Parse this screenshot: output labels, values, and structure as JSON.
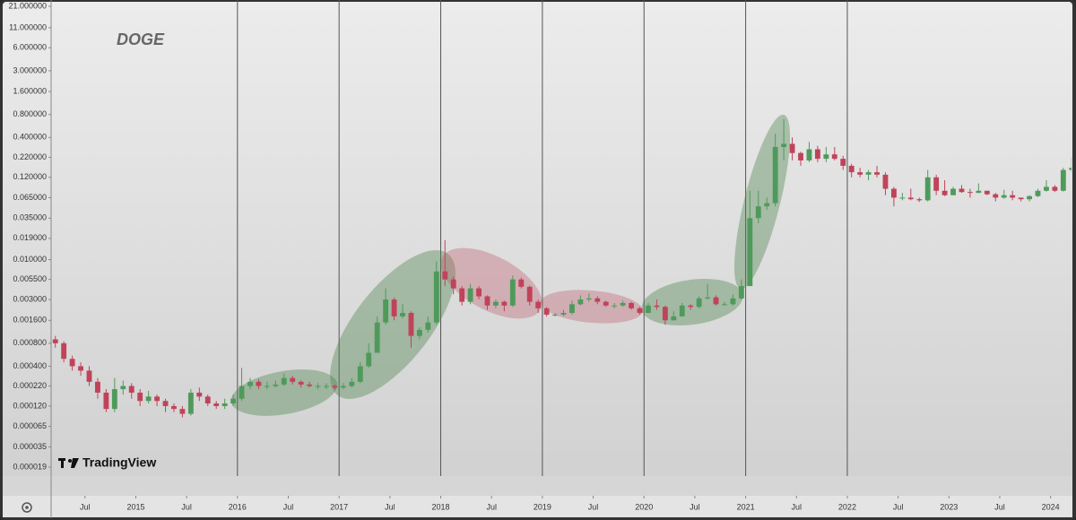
{
  "chart_data": {
    "type": "candlestick",
    "title": "DOGE",
    "watermark": "TradingView",
    "x": [
      "2014-03",
      "2014-04",
      "2014-05",
      "2014-06",
      "2014-07",
      "2014-08",
      "2014-09",
      "2014-10",
      "2014-11",
      "2014-12",
      "2015-01",
      "2015-02",
      "2015-03",
      "2015-04",
      "2015-05",
      "2015-06",
      "2015-07",
      "2015-08",
      "2015-09",
      "2015-10",
      "2015-11",
      "2015-12",
      "2016-01",
      "2016-02",
      "2016-03",
      "2016-04",
      "2016-05",
      "2016-06",
      "2016-07",
      "2016-08",
      "2016-09",
      "2016-10",
      "2016-11",
      "2016-12",
      "2017-01",
      "2017-02",
      "2017-03",
      "2017-04",
      "2017-05",
      "2017-06",
      "2017-07",
      "2017-08",
      "2017-09",
      "2017-10",
      "2017-11",
      "2017-12",
      "2018-01",
      "2018-02",
      "2018-03",
      "2018-04",
      "2018-05",
      "2018-06",
      "2018-07",
      "2018-08",
      "2018-09",
      "2018-10",
      "2018-11",
      "2018-12",
      "2019-01",
      "2019-02",
      "2019-03",
      "2019-04",
      "2019-05",
      "2019-06",
      "2019-07",
      "2019-08",
      "2019-09",
      "2019-10",
      "2019-11",
      "2019-12",
      "2020-01",
      "2020-02",
      "2020-03",
      "2020-04",
      "2020-05",
      "2020-06",
      "2020-07",
      "2020-08",
      "2020-09",
      "2020-10",
      "2020-11",
      "2020-12",
      "2021-01",
      "2021-02",
      "2021-03",
      "2021-04",
      "2021-05",
      "2021-06",
      "2021-07",
      "2021-08",
      "2021-09",
      "2021-10",
      "2021-11",
      "2021-12",
      "2022-01",
      "2022-02",
      "2022-03",
      "2022-04",
      "2022-05",
      "2022-06",
      "2022-07",
      "2022-08",
      "2022-09",
      "2022-10",
      "2022-11",
      "2022-12",
      "2023-01",
      "2023-02",
      "2023-03",
      "2023-04",
      "2023-05",
      "2023-06",
      "2023-07",
      "2023-08",
      "2023-09",
      "2023-10",
      "2023-11",
      "2023-12",
      "2024-01",
      "2024-02",
      "2024-03"
    ],
    "open": [
      0.0009,
      0.0008,
      0.0005,
      0.0004,
      0.00035,
      0.00025,
      0.00018,
      0.00011,
      0.0002,
      0.00022,
      0.00018,
      0.00014,
      0.00016,
      0.00014,
      0.00012,
      0.00011,
      9.5e-05,
      0.00018,
      0.00016,
      0.00013,
      0.00012,
      0.00013,
      0.00015,
      0.00022,
      0.00025,
      0.00022,
      0.00022,
      0.00023,
      0.00028,
      0.00025,
      0.00023,
      0.00022,
      0.00022,
      0.00022,
      0.00021,
      0.00022,
      0.00025,
      0.0004,
      0.0006,
      0.0015,
      0.003,
      0.0018,
      0.002,
      0.001,
      0.0012,
      0.0015,
      0.007,
      0.0055,
      0.0042,
      0.0028,
      0.0042,
      0.0033,
      0.0025,
      0.0028,
      0.0025,
      0.0055,
      0.0044,
      0.0028,
      0.0023,
      0.0019,
      0.0019,
      0.002,
      0.0026,
      0.003,
      0.0031,
      0.0028,
      0.0025,
      0.0025,
      0.0027,
      0.0023,
      0.002,
      0.0025,
      0.0024,
      0.0016,
      0.0018,
      0.0025,
      0.0024,
      0.0031,
      0.0032,
      0.0026,
      0.0026,
      0.0031,
      0.0045,
      0.035,
      0.05,
      0.055,
      0.3,
      0.33,
      0.25,
      0.2,
      0.28,
      0.21,
      0.24,
      0.21,
      0.17,
      0.14,
      0.13,
      0.14,
      0.13,
      0.085,
      0.065,
      0.065,
      0.062,
      0.06,
      0.12,
      0.08,
      0.07,
      0.085,
      0.077,
      0.075,
      0.08,
      0.072,
      0.065,
      0.07,
      0.065,
      0.062,
      0.068,
      0.08,
      0.09,
      0.08,
      0.15
    ],
    "high": [
      0.001,
      0.00085,
      0.00055,
      0.00045,
      0.0004,
      0.00028,
      0.0002,
      0.00028,
      0.00026,
      0.00024,
      0.0002,
      0.00019,
      0.00017,
      0.00015,
      0.00013,
      0.00012,
      0.0002,
      0.00021,
      0.00017,
      0.00014,
      0.00015,
      0.00017,
      0.00038,
      0.00028,
      0.00027,
      0.00025,
      0.00026,
      0.00032,
      0.0003,
      0.00026,
      0.00025,
      0.00024,
      0.00024,
      0.00023,
      0.00024,
      0.00028,
      0.00045,
      0.0008,
      0.0018,
      0.0042,
      0.0032,
      0.0026,
      0.0021,
      0.0013,
      0.0018,
      0.0095,
      0.018,
      0.006,
      0.0045,
      0.0048,
      0.0045,
      0.0034,
      0.003,
      0.0029,
      0.0062,
      0.0058,
      0.0046,
      0.003,
      0.0024,
      0.002,
      0.0022,
      0.0029,
      0.0034,
      0.0036,
      0.0033,
      0.0029,
      0.0027,
      0.0029,
      0.0028,
      0.0024,
      0.0027,
      0.003,
      0.0025,
      0.0021,
      0.0027,
      0.0026,
      0.0033,
      0.0048,
      0.0034,
      0.0028,
      0.0035,
      0.0055,
      0.08,
      0.08,
      0.065,
      0.45,
      0.7,
      0.4,
      0.26,
      0.35,
      0.31,
      0.3,
      0.3,
      0.23,
      0.18,
      0.16,
      0.15,
      0.17,
      0.14,
      0.09,
      0.075,
      0.085,
      0.065,
      0.15,
      0.13,
      0.11,
      0.09,
      0.095,
      0.085,
      0.1,
      0.08,
      0.075,
      0.082,
      0.08,
      0.065,
      0.07,
      0.085,
      0.11,
      0.095,
      0.16,
      0.22
    ],
    "low": [
      0.0007,
      0.00045,
      0.00035,
      0.0003,
      0.00022,
      0.00015,
      0.0001,
      0.0001,
      0.00017,
      0.00015,
      0.00012,
      0.00013,
      0.00012,
      0.0001,
      0.0001,
      8.5e-05,
      9e-05,
      0.00014,
      0.00012,
      0.00011,
      0.00011,
      0.00012,
      0.00014,
      0.0002,
      0.0002,
      0.0002,
      0.00021,
      0.00022,
      0.00023,
      0.00021,
      0.00021,
      0.0002,
      0.0002,
      0.0002,
      0.0002,
      0.00021,
      0.00024,
      0.00038,
      0.0006,
      0.0014,
      0.0016,
      0.0017,
      0.0007,
      0.0009,
      0.0011,
      0.0014,
      0.0045,
      0.0035,
      0.0025,
      0.0026,
      0.003,
      0.0022,
      0.0023,
      0.0021,
      0.0024,
      0.0042,
      0.0025,
      0.002,
      0.0018,
      0.0018,
      0.0018,
      0.0019,
      0.0025,
      0.0028,
      0.0026,
      0.0024,
      0.0023,
      0.0024,
      0.0022,
      0.0019,
      0.002,
      0.0022,
      0.0014,
      0.0016,
      0.0018,
      0.0022,
      0.0023,
      0.003,
      0.0025,
      0.0025,
      0.0025,
      0.003,
      0.0045,
      0.03,
      0.045,
      0.05,
      0.2,
      0.2,
      0.17,
      0.19,
      0.19,
      0.19,
      0.2,
      0.15,
      0.12,
      0.12,
      0.11,
      0.12,
      0.07,
      0.05,
      0.06,
      0.06,
      0.057,
      0.058,
      0.07,
      0.068,
      0.07,
      0.075,
      0.065,
      0.075,
      0.07,
      0.058,
      0.063,
      0.06,
      0.058,
      0.058,
      0.066,
      0.078,
      0.077,
      0.078,
      0.14
    ],
    "close": [
      0.0008,
      0.0005,
      0.0004,
      0.00035,
      0.00025,
      0.00018,
      0.00011,
      0.0002,
      0.00022,
      0.00018,
      0.00014,
      0.00016,
      0.00014,
      0.00012,
      0.00011,
      9.5e-05,
      0.00018,
      0.00016,
      0.00013,
      0.00012,
      0.00013,
      0.00015,
      0.00022,
      0.00025,
      0.00022,
      0.00022,
      0.00023,
      0.00028,
      0.00025,
      0.00023,
      0.00022,
      0.00022,
      0.00022,
      0.00021,
      0.00022,
      0.00025,
      0.0004,
      0.0006,
      0.0015,
      0.003,
      0.0018,
      0.002,
      0.001,
      0.0012,
      0.0015,
      0.007,
      0.0055,
      0.0042,
      0.0028,
      0.0042,
      0.0033,
      0.0025,
      0.0028,
      0.0025,
      0.0055,
      0.0044,
      0.0028,
      0.0023,
      0.0019,
      0.0019,
      0.002,
      0.0026,
      0.003,
      0.0031,
      0.0028,
      0.0025,
      0.0025,
      0.0027,
      0.0023,
      0.002,
      0.0025,
      0.0024,
      0.0016,
      0.0018,
      0.0025,
      0.0024,
      0.0031,
      0.0032,
      0.0026,
      0.0026,
      0.0031,
      0.0045,
      0.035,
      0.05,
      0.055,
      0.3,
      0.33,
      0.25,
      0.2,
      0.28,
      0.21,
      0.24,
      0.21,
      0.17,
      0.14,
      0.13,
      0.14,
      0.13,
      0.085,
      0.065,
      0.065,
      0.062,
      0.06,
      0.12,
      0.08,
      0.07,
      0.085,
      0.077,
      0.075,
      0.08,
      0.072,
      0.065,
      0.07,
      0.065,
      0.062,
      0.068,
      0.08,
      0.09,
      0.08,
      0.15,
      0.16
    ],
    "up_color": "#4f9a5b",
    "down_color": "#c0435a",
    "log_scale": true,
    "xlim": [
      "2014-03",
      "2024-04"
    ],
    "xticks": [
      {
        "value": "2014-07",
        "label": "Jul"
      },
      {
        "value": "2015-01",
        "label": "2015"
      },
      {
        "value": "2015-07",
        "label": "Jul"
      },
      {
        "value": "2016-01",
        "label": "2016"
      },
      {
        "value": "2016-07",
        "label": "Jul"
      },
      {
        "value": "2017-01",
        "label": "2017"
      },
      {
        "value": "2017-07",
        "label": "Jul"
      },
      {
        "value": "2018-01",
        "label": "2018"
      },
      {
        "value": "2018-07",
        "label": "Jul"
      },
      {
        "value": "2019-01",
        "label": "2019"
      },
      {
        "value": "2019-07",
        "label": "Jul"
      },
      {
        "value": "2020-01",
        "label": "2020"
      },
      {
        "value": "2020-07",
        "label": "Jul"
      },
      {
        "value": "2021-01",
        "label": "2021"
      },
      {
        "value": "2021-07",
        "label": "Jul"
      },
      {
        "value": "2022-01",
        "label": "2022"
      },
      {
        "value": "2022-07",
        "label": "Jul"
      },
      {
        "value": "2023-01",
        "label": "2023"
      },
      {
        "value": "2023-07",
        "label": "Jul"
      },
      {
        "value": "2024-01",
        "label": "2024"
      }
    ],
    "vlines": [
      "2016-01",
      "2017-01",
      "2018-01",
      "2019-01",
      "2020-01",
      "2021-01",
      "2022-01"
    ],
    "ylim": [
      1.45e-05,
      25.4
    ],
    "yticks": [
      {
        "value": 21,
        "label": "21.000000"
      },
      {
        "value": 11,
        "label": "11.000000"
      },
      {
        "value": 6,
        "label": "6.000000"
      },
      {
        "value": 3,
        "label": "3.000000"
      },
      {
        "value": 1.6,
        "label": "1.600000"
      },
      {
        "value": 0.8,
        "label": "0.800000"
      },
      {
        "value": 0.4,
        "label": "0.400000"
      },
      {
        "value": 0.22,
        "label": "0.220000"
      },
      {
        "value": 0.12,
        "label": "0.120000"
      },
      {
        "value": 0.065,
        "label": "0.065000"
      },
      {
        "value": 0.035,
        "label": "0.035000"
      },
      {
        "value": 0.019,
        "label": "0.019000"
      },
      {
        "value": 0.01,
        "label": "0.010000"
      },
      {
        "value": 0.0055,
        "label": "0.005500"
      },
      {
        "value": 0.003,
        "label": "0.003000"
      },
      {
        "value": 0.0016,
        "label": "0.001600"
      },
      {
        "value": 0.0008,
        "label": "0.000800"
      },
      {
        "value": 0.0004,
        "label": "0.000400"
      },
      {
        "value": 0.00022,
        "label": "0.000220"
      },
      {
        "value": 0.00012,
        "label": "0.000120"
      },
      {
        "value": 6.5e-05,
        "label": "0.000065"
      },
      {
        "value": 3.5e-05,
        "label": "0.000035"
      },
      {
        "value": 1.9e-05,
        "label": "0.000019"
      }
    ]
  }
}
